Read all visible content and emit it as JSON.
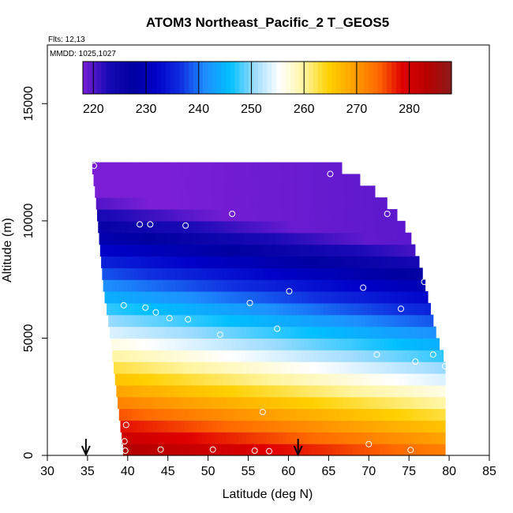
{
  "chart_data": {
    "type": "heatmap",
    "title": "ATOM3 Northeast_Pacific_2 T_GEOS5",
    "flights_note": "Flts: 12,13",
    "dates_note": "MMDD: 1025,1027",
    "xlabel": "Latitude (deg N)",
    "ylabel": "Altitude (m)",
    "xlim": [
      30,
      85
    ],
    "ylim": [
      0,
      17500
    ],
    "x_ticks": [
      "30",
      "35",
      "40",
      "45",
      "50",
      "55",
      "60",
      "65",
      "70",
      "75",
      "80",
      "85"
    ],
    "y_ticks": [
      "0",
      "5000",
      "10000",
      "15000"
    ],
    "colorbar": {
      "range": [
        218,
        288
      ],
      "ticks": [
        "220",
        "230",
        "240",
        "250",
        "260",
        "270",
        "280"
      ],
      "colors": [
        "#7a1fd6",
        "#1a0ab5",
        "#0000a0",
        "#0000c8",
        "#1030e0",
        "#1e90ff",
        "#00bfff",
        "#9fdcff",
        "#ffffff",
        "#fff5a0",
        "#ffd000",
        "#ffa000",
        "#ff6a00",
        "#e00000",
        "#b80000",
        "#8b1a1a"
      ]
    },
    "field": {
      "z_surface": 284,
      "surface_warm_shift_per_deg": 0.3,
      "lapse_per_km": 6.2,
      "z_floor": 218,
      "floor_slope": 0.05
    },
    "domain_edges": {
      "left": [
        [
          0,
          39.5
        ],
        [
          1500,
          39.0
        ],
        [
          3000,
          38.5
        ],
        [
          4500,
          38.0
        ],
        [
          6000,
          37.5
        ],
        [
          7000,
          37.0
        ],
        [
          9000,
          36.5
        ],
        [
          11000,
          36.0
        ],
        [
          12500,
          35.5
        ]
      ],
      "right": [
        [
          0,
          79.5
        ],
        [
          4000,
          79.5
        ],
        [
          5000,
          78.5
        ],
        [
          6500,
          77.5
        ],
        [
          8000,
          76.5
        ],
        [
          9500,
          75.0
        ],
        [
          10500,
          73.0
        ],
        [
          11500,
          70.0
        ],
        [
          12500,
          65.5
        ]
      ]
    },
    "samples": [
      [
        35.8,
        12350
      ],
      [
        65.2,
        12000
      ],
      [
        72.3,
        10300
      ],
      [
        42.8,
        9850
      ],
      [
        41.5,
        9850
      ],
      [
        47.2,
        9800
      ],
      [
        53.0,
        10300
      ],
      [
        36.5,
        7200
      ],
      [
        60.1,
        7000
      ],
      [
        69.3,
        7150
      ],
      [
        76.9,
        7400
      ],
      [
        42.2,
        6300
      ],
      [
        39.5,
        6400
      ],
      [
        55.2,
        6500
      ],
      [
        47.5,
        5800
      ],
      [
        45.2,
        5850
      ],
      [
        43.5,
        6100
      ],
      [
        74.0,
        6250
      ],
      [
        51.5,
        5150
      ],
      [
        58.6,
        5400
      ],
      [
        38.2,
        4600
      ],
      [
        71.0,
        4300
      ],
      [
        75.8,
        4000
      ],
      [
        78.0,
        4300
      ],
      [
        79.5,
        3800
      ],
      [
        56.8,
        1850
      ],
      [
        39.8,
        1300
      ],
      [
        39.6,
        600
      ],
      [
        39.7,
        200
      ],
      [
        44.1,
        250
      ],
      [
        50.6,
        250
      ],
      [
        55.8,
        200
      ],
      [
        57.6,
        180
      ],
      [
        70.0,
        480
      ],
      [
        75.2,
        230
      ]
    ],
    "arrows_at_latitude": [
      34.8,
      61.2
    ]
  }
}
